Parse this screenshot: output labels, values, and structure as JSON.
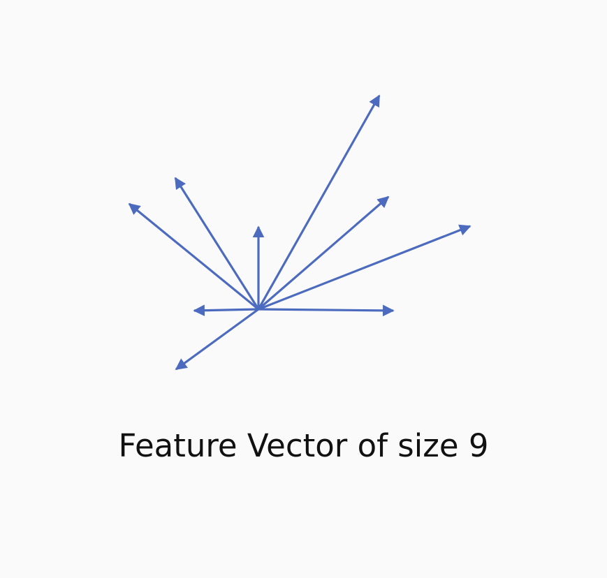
{
  "caption": "Feature Vector of size 9",
  "colors": {
    "arrow": "#4d6bbe",
    "background": "#fafafa",
    "text": "#111111"
  },
  "vector_count": 9
}
